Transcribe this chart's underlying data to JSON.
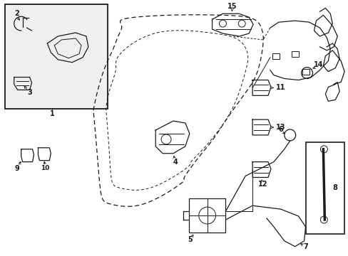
{
  "bg_color": "#ffffff",
  "line_color": "#1a1a1a",
  "inset_bg": "#efefef",
  "figsize": [
    4.89,
    3.6
  ],
  "dpi": 100
}
